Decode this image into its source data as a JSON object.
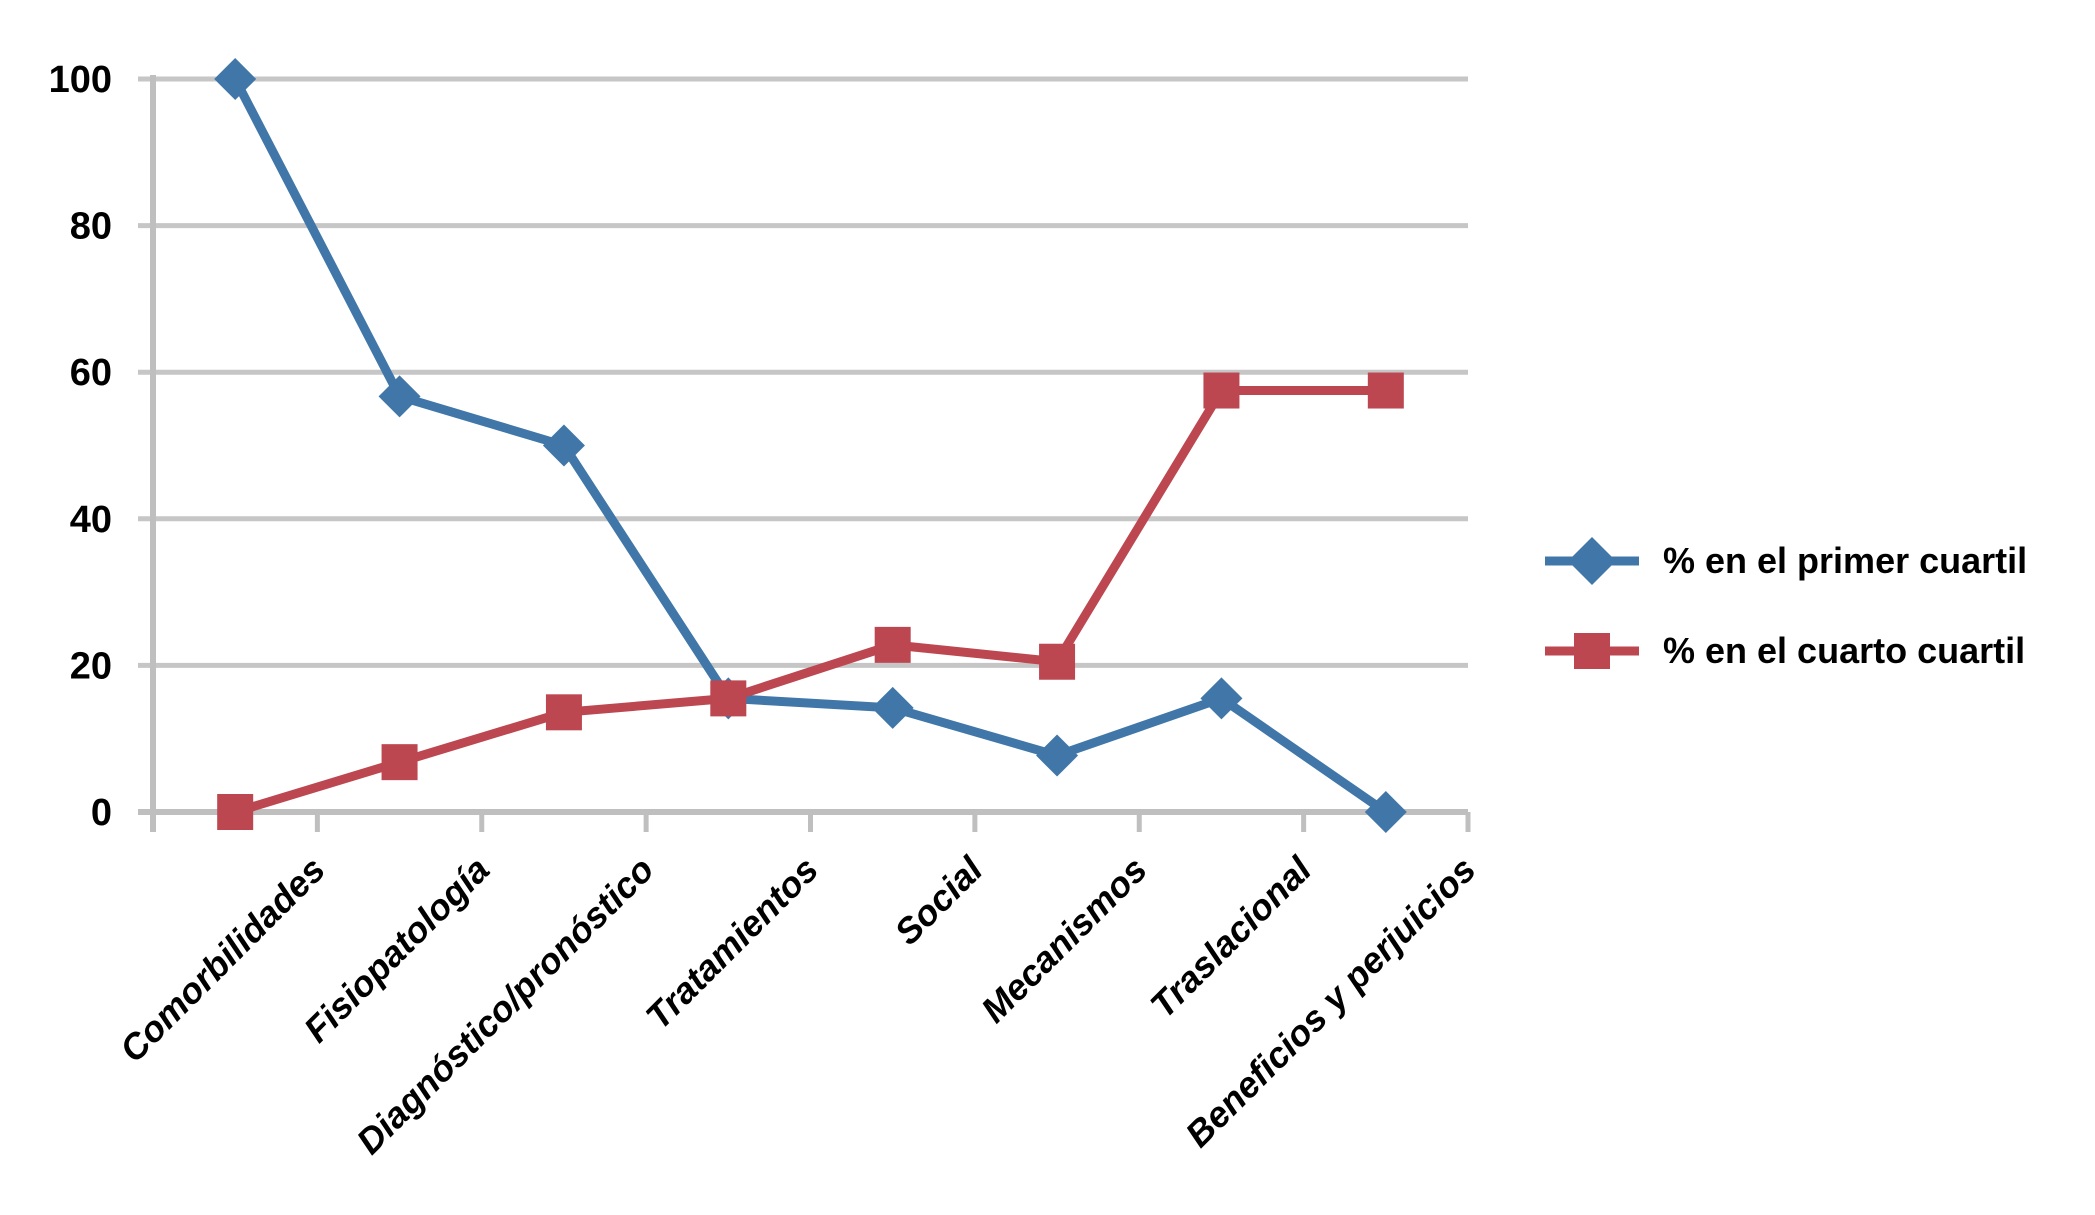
{
  "chart_data": {
    "type": "line",
    "title": "",
    "categories": [
      "Comorbilidades",
      "Fisiopatología",
      "Diagnóstico/pronóstico",
      "Tratamientos",
      "Social",
      "Mecanismos",
      "Traslacional",
      "Beneficios y perjuicios"
    ],
    "series": [
      {
        "name": "% en el primer cuartil",
        "marker": "diamond",
        "color": "#4077A8",
        "values": [
          100,
          56.7,
          50,
          15.5,
          14.2,
          7.7,
          15.5,
          0
        ]
      },
      {
        "name": "% en el cuarto cuartil",
        "marker": "square",
        "color": "#BC4750",
        "values": [
          0,
          6.8,
          13.6,
          15.5,
          22.8,
          20.5,
          57.5,
          57.5
        ]
      }
    ],
    "y_axis": {
      "min": 0,
      "max": 100,
      "tick_interval": 20,
      "tick_labels": [
        "0",
        "20",
        "40",
        "60",
        "80",
        "100"
      ]
    },
    "x_axis": {
      "label": ""
    },
    "grid": true,
    "legend_position": "right",
    "colors": {
      "gridline": "#C6C6C6",
      "axis": "#BFBFBF",
      "text": "#000000",
      "background": "#FFFFFF"
    }
  }
}
